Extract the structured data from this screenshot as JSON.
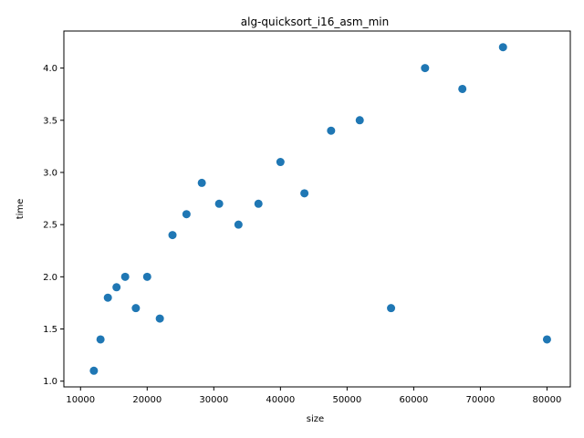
{
  "chart_data": {
    "type": "scatter",
    "title": "alg-quicksort_i16_asm_min",
    "xlabel": "size",
    "ylabel": "time",
    "xlim": [
      7500,
      83500
    ],
    "ylim": [
      0.945,
      4.355
    ],
    "xticks": [
      10000,
      20000,
      30000,
      40000,
      50000,
      60000,
      70000,
      80000
    ],
    "yticks": [
      1.0,
      1.5,
      2.0,
      2.5,
      3.0,
      3.5,
      4.0
    ],
    "xtick_labels": [
      "10000",
      "20000",
      "30000",
      "40000",
      "50000",
      "60000",
      "70000",
      "80000"
    ],
    "ytick_labels": [
      "1.0",
      "1.5",
      "2.0",
      "2.5",
      "3.0",
      "3.5",
      "4.0"
    ],
    "grid": false,
    "marker_color": "#1f77b4",
    "points": [
      {
        "x": 12000,
        "y": 1.1
      },
      {
        "x": 13000,
        "y": 1.4
      },
      {
        "x": 14100,
        "y": 1.8
      },
      {
        "x": 15400,
        "y": 1.9
      },
      {
        "x": 16700,
        "y": 2.0
      },
      {
        "x": 18300,
        "y": 1.7
      },
      {
        "x": 20000,
        "y": 2.0
      },
      {
        "x": 21900,
        "y": 1.6
      },
      {
        "x": 23800,
        "y": 2.4
      },
      {
        "x": 25900,
        "y": 2.6
      },
      {
        "x": 28200,
        "y": 2.9
      },
      {
        "x": 30800,
        "y": 2.7
      },
      {
        "x": 33700,
        "y": 2.5
      },
      {
        "x": 36700,
        "y": 2.7
      },
      {
        "x": 40000,
        "y": 3.1
      },
      {
        "x": 43600,
        "y": 2.8
      },
      {
        "x": 47600,
        "y": 3.4
      },
      {
        "x": 51900,
        "y": 3.5
      },
      {
        "x": 56600,
        "y": 1.7
      },
      {
        "x": 61700,
        "y": 4.0
      },
      {
        "x": 67300,
        "y": 3.8
      },
      {
        "x": 73400,
        "y": 4.2
      },
      {
        "x": 80000,
        "y": 1.4
      }
    ]
  }
}
